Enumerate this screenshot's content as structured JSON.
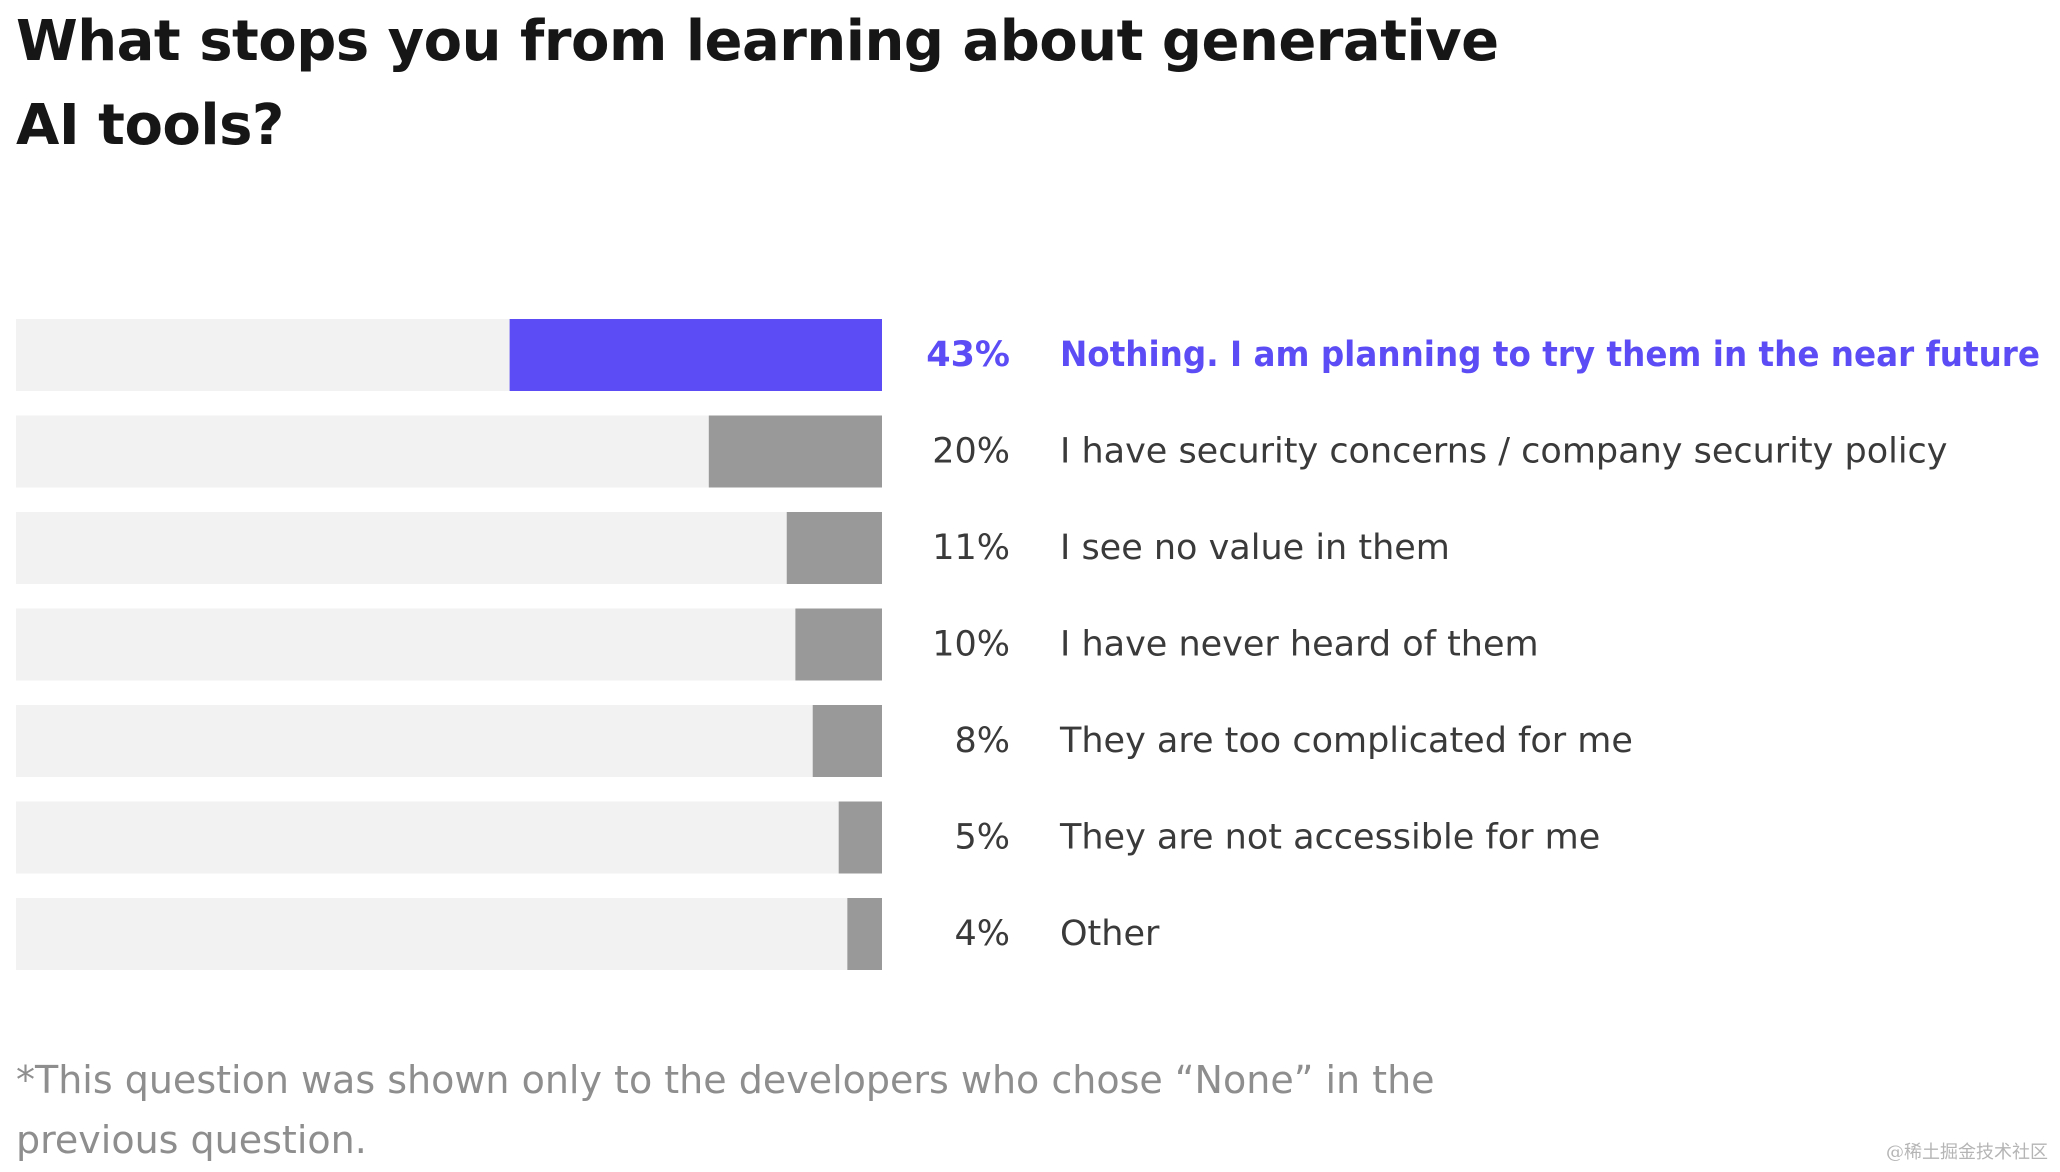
{
  "title": "What stops you from learning about generative AI tools?",
  "footnote": "*This question was shown only to the developers who chose “None” in the previous question.",
  "watermark": "@稀土掘金技术社区",
  "colors": {
    "highlight": "#5b4cf5",
    "bar": "#999999",
    "track": "#f2f2f2",
    "label": "#3a3a3a"
  },
  "chart_data": {
    "type": "bar",
    "orientation": "horizontal",
    "title": "What stops you from learning about generative AI tools?",
    "categories": [
      "Nothing. I am planning to try them in the near future",
      "I have security concerns / company security policy",
      "I see no value in them",
      "I have never heard of them",
      "They are too complicated for me",
      "They are not accessible for me",
      "Other"
    ],
    "values": [
      43,
      20,
      11,
      10,
      8,
      5,
      4
    ],
    "value_labels": [
      "43%",
      "20%",
      "11%",
      "10%",
      "8%",
      "5%",
      "4%"
    ],
    "highlight_index": 0,
    "xlim": [
      0,
      100
    ],
    "unit": "%"
  }
}
